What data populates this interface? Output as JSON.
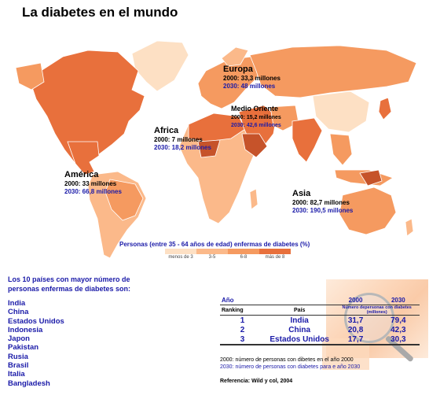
{
  "title": "La diabetes en el mundo",
  "colors": {
    "lightest": "#fde0c4",
    "light": "#fbb98a",
    "medium": "#f59a60",
    "dark": "#e8703c",
    "darkest": "#c6532a",
    "ocean": "#ffffff",
    "text_blue": "#1a1aa8"
  },
  "regions": [
    {
      "name": "Europa",
      "y2000": "2000: 33,3 millones",
      "y2030": "2030: 48 millones"
    },
    {
      "name": "Medio Oriente",
      "y2000": "2000: 15,2 millones",
      "y2030": "2030: 42,6 millones"
    },
    {
      "name": "Africa",
      "y2000": "2000: 7 millones",
      "y2030": "2030: 18,2 millones"
    },
    {
      "name": "América",
      "y2000": "2000: 33 millones",
      "y2030": "2030: 66,8 millones"
    },
    {
      "name": "Asia",
      "y2000": "2000: 82,7 millones",
      "y2030": "2030: 190,5 millones"
    }
  ],
  "legend": {
    "title": "Personas (entre 35 - 64 años de edad) enfermas de diabetes (%)",
    "items": [
      "menos de 3",
      "3-5",
      "6-8",
      "más de 8"
    ]
  },
  "top10": {
    "heading": "Los 10 países con mayor número de personas enfermas de  diabetes son:",
    "countries": [
      "India",
      "China",
      "Estados Unidos",
      "Indonesia",
      "Japon",
      "Pakistan",
      "Rusia",
      "Brasil",
      "Italia",
      "Bangladesh"
    ]
  },
  "ranking_table": {
    "col_year": "Año",
    "col_2000": "2000",
    "col_2030": "2030",
    "col_ranking": "Ranking",
    "col_pais": "País",
    "col_units": "Número depersonas con diabetes (millones)",
    "rows": [
      {
        "rank": "1",
        "pais": "India",
        "v2000": "31,7",
        "v2030": "79,4"
      },
      {
        "rank": "2",
        "pais": "China",
        "v2000": "20,8",
        "v2030": "42,3"
      },
      {
        "rank": "3",
        "pais": "Estados Unidos",
        "v2000": "17,7",
        "v2030": "30,3"
      }
    ]
  },
  "notes": {
    "n2000": "2000: número de personas con dibetes en el año 2000",
    "n2030": "2030: número de personas con diabetes para e año 2030"
  },
  "reference": "Referencia: Wild y col, 2004"
}
